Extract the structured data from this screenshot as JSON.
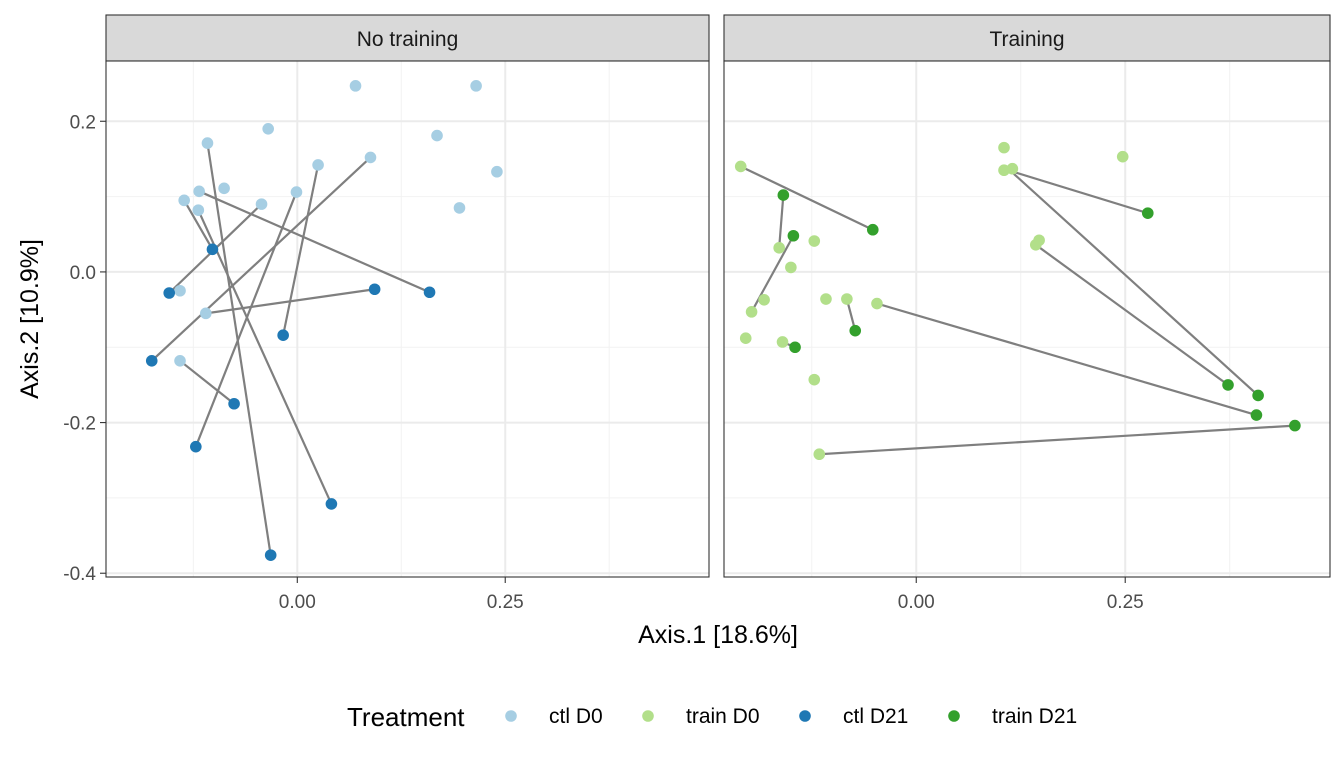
{
  "chart_data": {
    "type": "scatter",
    "xlabel": "Axis.1   [18.6%]",
    "ylabel": "Axis.2   [10.9%]",
    "xlim": [
      -0.23,
      0.495
    ],
    "ylim": [
      -0.405,
      0.28
    ],
    "x_ticks": [
      0.0,
      0.25
    ],
    "x_tick_labels": [
      "0.00",
      "0.25"
    ],
    "y_ticks": [
      0.2,
      0.0,
      -0.2,
      -0.4
    ],
    "y_tick_labels": [
      "0.2",
      "0.0",
      "-0.2",
      "-0.4"
    ],
    "grid": true,
    "legend": {
      "title": "Treatment",
      "position": "bottom",
      "entries": [
        {
          "label": "ctl D0",
          "color": "#A6CEE3"
        },
        {
          "label": "train D0",
          "color": "#B2DF8A"
        },
        {
          "label": "ctl D21",
          "color": "#1F78B4"
        },
        {
          "label": "train D21",
          "color": "#33A02C"
        }
      ]
    },
    "facets": [
      {
        "strip_label": "No training",
        "d0_color": "#A6CEE3",
        "d21_color": "#1F78B4",
        "d0_points": [
          [
            0.07,
            0.247
          ],
          [
            0.215,
            0.247
          ],
          [
            -0.108,
            0.171
          ],
          [
            -0.035,
            0.19
          ],
          [
            0.168,
            0.181
          ],
          [
            0.088,
            0.152
          ],
          [
            0.025,
            0.142
          ],
          [
            0.24,
            0.133
          ],
          [
            -0.088,
            0.111
          ],
          [
            -0.118,
            0.107
          ],
          [
            -0.001,
            0.106
          ],
          [
            -0.136,
            0.095
          ],
          [
            -0.043,
            0.09
          ],
          [
            -0.119,
            0.082
          ],
          [
            0.195,
            0.085
          ],
          [
            -0.141,
            -0.025
          ],
          [
            -0.11,
            -0.055
          ],
          [
            -0.141,
            -0.118
          ]
        ],
        "d21_points": [
          [
            -0.102,
            0.03
          ],
          [
            -0.154,
            -0.028
          ],
          [
            0.093,
            -0.023
          ],
          [
            0.159,
            -0.027
          ],
          [
            -0.017,
            -0.084
          ],
          [
            -0.175,
            -0.118
          ],
          [
            -0.076,
            -0.175
          ],
          [
            -0.122,
            -0.232
          ],
          [
            0.041,
            -0.308
          ],
          [
            -0.032,
            -0.376
          ]
        ],
        "pairs": [
          [
            [
              -0.108,
              0.171
            ],
            [
              -0.032,
              -0.376
            ]
          ],
          [
            [
              0.088,
              0.152
            ],
            [
              -0.175,
              -0.118
            ]
          ],
          [
            [
              0.025,
              0.142
            ],
            [
              -0.017,
              -0.084
            ]
          ],
          [
            [
              -0.001,
              0.106
            ],
            [
              -0.122,
              -0.232
            ]
          ],
          [
            [
              -0.118,
              0.107
            ],
            [
              0.159,
              -0.027
            ]
          ],
          [
            [
              -0.136,
              0.095
            ],
            [
              -0.102,
              0.03
            ]
          ],
          [
            [
              -0.043,
              0.09
            ],
            [
              -0.154,
              -0.028
            ]
          ],
          [
            [
              -0.119,
              0.082
            ],
            [
              0.041,
              -0.308
            ]
          ],
          [
            [
              -0.11,
              -0.055
            ],
            [
              0.093,
              -0.023
            ]
          ],
          [
            [
              -0.141,
              -0.118
            ],
            [
              -0.076,
              -0.175
            ]
          ]
        ]
      },
      {
        "strip_label": "Training",
        "d0_color": "#B2DF8A",
        "d21_color": "#33A02C",
        "d0_points": [
          [
            -0.21,
            0.14
          ],
          [
            0.105,
            0.165
          ],
          [
            0.105,
            0.135
          ],
          [
            0.115,
            0.137
          ],
          [
            0.247,
            0.153
          ],
          [
            -0.164,
            0.032
          ],
          [
            -0.122,
            0.041
          ],
          [
            -0.15,
            0.006
          ],
          [
            -0.182,
            -0.037
          ],
          [
            -0.197,
            -0.053
          ],
          [
            -0.108,
            -0.036
          ],
          [
            -0.083,
            -0.036
          ],
          [
            -0.047,
            -0.042
          ],
          [
            -0.204,
            -0.088
          ],
          [
            -0.16,
            -0.093
          ],
          [
            -0.122,
            -0.143
          ],
          [
            -0.116,
            -0.242
          ],
          [
            0.147,
            0.042
          ],
          [
            0.143,
            0.036
          ]
        ],
        "d21_points": [
          [
            -0.159,
            0.102
          ],
          [
            -0.147,
            0.048
          ],
          [
            -0.052,
            0.056
          ],
          [
            0.277,
            0.078
          ],
          [
            -0.145,
            -0.1
          ],
          [
            -0.073,
            -0.078
          ],
          [
            0.373,
            -0.15
          ],
          [
            0.409,
            -0.164
          ],
          [
            0.407,
            -0.19
          ],
          [
            0.453,
            -0.204
          ]
        ],
        "pairs": [
          [
            [
              -0.21,
              0.14
            ],
            [
              -0.052,
              0.056
            ]
          ],
          [
            [
              0.11,
              0.135
            ],
            [
              0.277,
              0.078
            ]
          ],
          [
            [
              0.11,
              0.137
            ],
            [
              0.409,
              -0.164
            ]
          ],
          [
            [
              0.143,
              0.036
            ],
            [
              0.373,
              -0.15
            ]
          ],
          [
            [
              -0.164,
              0.032
            ],
            [
              -0.159,
              0.102
            ]
          ],
          [
            [
              -0.197,
              -0.053
            ],
            [
              -0.147,
              0.048
            ]
          ],
          [
            [
              -0.083,
              -0.036
            ],
            [
              -0.073,
              -0.078
            ]
          ],
          [
            [
              -0.047,
              -0.042
            ],
            [
              0.407,
              -0.19
            ]
          ],
          [
            [
              -0.16,
              -0.093
            ],
            [
              -0.145,
              -0.1
            ]
          ],
          [
            [
              -0.116,
              -0.242
            ],
            [
              0.453,
              -0.204
            ]
          ]
        ]
      }
    ]
  }
}
